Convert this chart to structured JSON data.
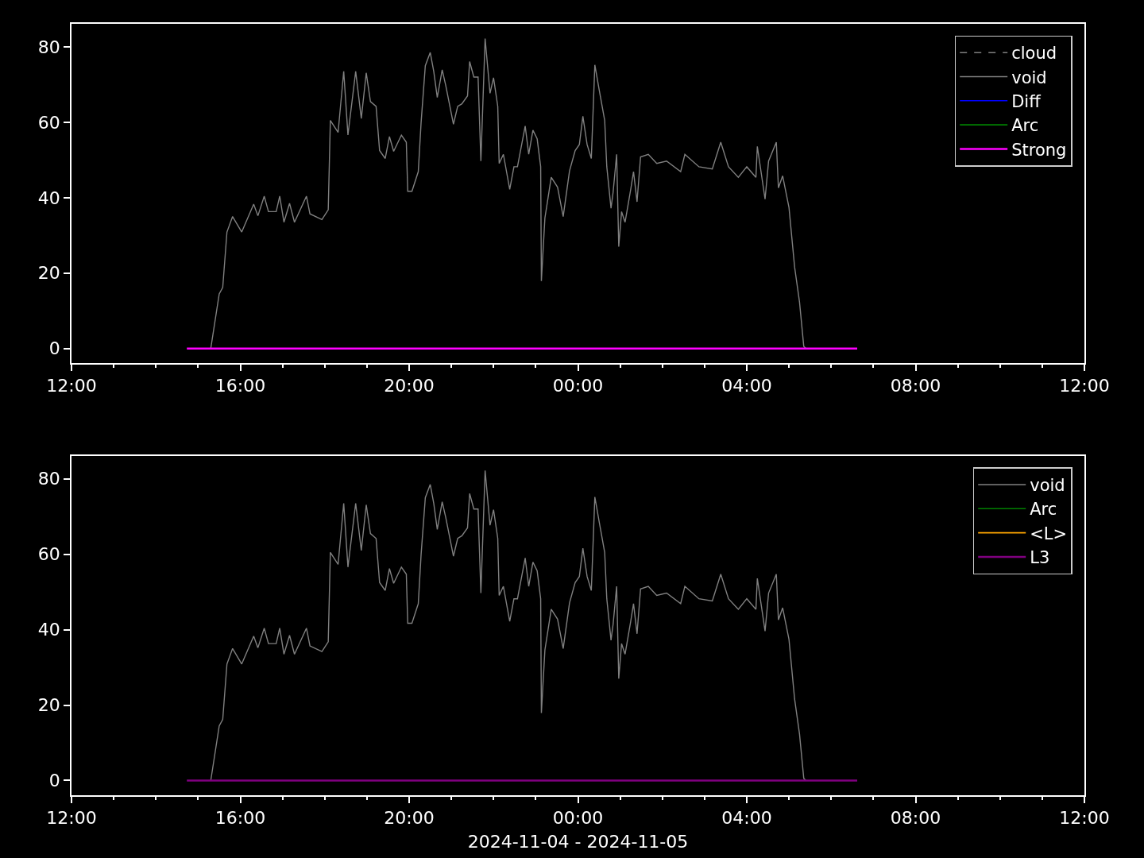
{
  "chart_data": [
    {
      "type": "line",
      "xlim": [
        "2024-11-04T12:00",
        "2024-11-05T12:00"
      ],
      "ylim": [
        -3.9,
        86.1
      ],
      "yticks": [
        0,
        20,
        40,
        60,
        80
      ],
      "xticks": [
        {
          "value": "2024-11-04T12:00",
          "label": "12:00"
        },
        {
          "value": "2024-11-04T13:00",
          "label": null
        },
        {
          "value": "2024-11-04T14:00",
          "label": null
        },
        {
          "value": "2024-11-04T15:00",
          "label": null
        },
        {
          "value": "2024-11-04T16:00",
          "label": "16:00"
        },
        {
          "value": "2024-11-04T17:00",
          "label": null
        },
        {
          "value": "2024-11-04T18:00",
          "label": null
        },
        {
          "value": "2024-11-04T19:00",
          "label": null
        },
        {
          "value": "2024-11-04T20:00",
          "label": "20:00"
        },
        {
          "value": "2024-11-04T21:00",
          "label": null
        },
        {
          "value": "2024-11-04T22:00",
          "label": null
        },
        {
          "value": "2024-11-04T23:00",
          "label": null
        },
        {
          "value": "2024-11-05T00:00",
          "label": "00:00"
        },
        {
          "value": "2024-11-05T01:00",
          "label": null
        },
        {
          "value": "2024-11-05T02:00",
          "label": null
        },
        {
          "value": "2024-11-05T03:00",
          "label": null
        },
        {
          "value": "2024-11-05T04:00",
          "label": "04:00"
        },
        {
          "value": "2024-11-05T05:00",
          "label": null
        },
        {
          "value": "2024-11-05T06:00",
          "label": null
        },
        {
          "value": "2024-11-05T07:00",
          "label": null
        },
        {
          "value": "2024-11-05T08:00",
          "label": "08:00"
        },
        {
          "value": "2024-11-05T09:00",
          "label": null
        },
        {
          "value": "2024-11-05T10:00",
          "label": null
        },
        {
          "value": "2024-11-05T11:00",
          "label": null
        },
        {
          "value": "2024-11-05T12:00",
          "label": "12:00"
        }
      ],
      "grid": false,
      "legend": "top right",
      "marker": "none",
      "series": [
        {
          "name": "cloud",
          "color": "#808080",
          "line_style": "dashed"
        },
        {
          "name": "void",
          "color": "#808080",
          "line_style": "solid",
          "x": [
            "2024-11-04T15:18",
            "2024-11-04T15:30",
            "2024-11-04T15:35",
            "2024-11-04T15:41",
            "2024-11-04T15:49",
            "2024-11-04T16:02",
            "2024-11-04T16:19",
            "2024-11-04T16:25",
            "2024-11-04T16:34",
            "2024-11-04T16:40",
            "2024-11-04T16:51",
            "2024-11-04T16:56",
            "2024-11-04T17:02",
            "2024-11-04T17:10",
            "2024-11-04T17:17",
            "2024-11-04T17:34",
            "2024-11-04T17:39",
            "2024-11-04T17:56",
            "2024-11-04T18:05",
            "2024-11-04T18:08",
            "2024-11-04T18:19",
            "2024-11-04T18:27",
            "2024-11-04T18:33",
            "2024-11-04T18:44",
            "2024-11-04T18:52",
            "2024-11-04T18:59",
            "2024-11-04T19:05",
            "2024-11-04T19:13",
            "2024-11-04T19:18",
            "2024-11-04T19:26",
            "2024-11-04T19:32",
            "2024-11-04T19:38",
            "2024-11-04T19:49",
            "2024-11-04T19:56",
            "2024-11-04T19:58",
            "2024-11-04T20:04",
            "2024-11-04T20:13",
            "2024-11-04T20:17",
            "2024-11-04T20:23",
            "2024-11-04T20:30",
            "2024-11-04T20:35",
            "2024-11-04T20:40",
            "2024-11-04T20:47",
            "2024-11-04T20:52",
            "2024-11-04T21:03",
            "2024-11-04T21:09",
            "2024-11-04T21:15",
            "2024-11-04T21:23",
            "2024-11-04T21:26",
            "2024-11-04T21:32",
            "2024-11-04T21:38",
            "2024-11-04T21:42",
            "2024-11-04T21:48",
            "2024-11-04T21:55",
            "2024-11-04T22:00",
            "2024-11-04T22:06",
            "2024-11-04T22:08",
            "2024-11-04T22:14",
            "2024-11-04T22:23",
            "2024-11-04T22:29",
            "2024-11-04T22:34",
            "2024-11-04T22:45",
            "2024-11-04T22:50",
            "2024-11-04T22:56",
            "2024-11-04T23:02",
            "2024-11-04T23:07",
            "2024-11-04T23:08",
            "2024-11-04T23:13",
            "2024-11-04T23:22",
            "2024-11-04T23:31",
            "2024-11-04T23:39",
            "2024-11-04T23:48",
            "2024-11-04T23:56",
            "2024-11-05T00:02",
            "2024-11-05T00:07",
            "2024-11-05T00:13",
            "2024-11-05T00:19",
            "2024-11-05T00:24",
            "2024-11-05T00:30",
            "2024-11-05T00:38",
            "2024-11-05T00:41",
            "2024-11-05T00:47",
            "2024-11-05T00:50",
            "2024-11-05T00:55",
            "2024-11-05T00:58",
            "2024-11-05T01:02",
            "2024-11-05T01:07",
            "2024-11-05T01:15",
            "2024-11-05T01:19",
            "2024-11-05T01:24",
            "2024-11-05T01:29",
            "2024-11-05T01:40",
            "2024-11-05T01:52",
            "2024-11-05T02:06",
            "2024-11-05T02:26",
            "2024-11-05T02:32",
            "2024-11-05T02:52",
            "2024-11-05T03:11",
            "2024-11-05T03:23",
            "2024-11-05T03:34",
            "2024-11-05T03:48",
            "2024-11-05T04:00",
            "2024-11-05T04:13",
            "2024-11-05T04:15",
            "2024-11-05T04:26",
            "2024-11-05T04:31",
            "2024-11-05T04:42",
            "2024-11-05T04:45",
            "2024-11-05T04:51",
            "2024-11-05T05:00",
            "2024-11-05T05:08",
            "2024-11-05T05:15",
            "2024-11-05T05:21",
            "2024-11-05T05:24"
          ],
          "values": [
            0,
            14.5,
            16.2,
            30.9,
            35.0,
            30.9,
            38.3,
            35.2,
            40.4,
            36.3,
            36.3,
            40.4,
            33.5,
            38.5,
            33.5,
            40.4,
            35.7,
            34.2,
            36.8,
            60.5,
            57.3,
            73.5,
            56.6,
            73.5,
            61.0,
            73.1,
            65.5,
            64.2,
            52.5,
            50.4,
            56.2,
            52.3,
            56.6,
            54.7,
            41.7,
            41.7,
            46.9,
            59.9,
            75.0,
            78.5,
            73.5,
            66.6,
            73.9,
            69.8,
            59.5,
            64.2,
            64.9,
            67.0,
            76.1,
            72.0,
            72.0,
            49.7,
            82.2,
            67.7,
            71.8,
            64.2,
            49.1,
            51.5,
            42.2,
            48.2,
            48.2,
            59.0,
            51.5,
            57.9,
            55.6,
            48.2,
            17.9,
            34.6,
            45.4,
            42.8,
            35.0,
            47.1,
            52.5,
            54.1,
            61.6,
            54.1,
            50.4,
            75.2,
            68.8,
            60.5,
            48.2,
            37.2,
            41.5,
            51.5,
            27.0,
            36.3,
            33.5,
            42.2,
            46.9,
            38.9,
            50.8,
            51.5,
            49.1,
            49.7,
            46.9,
            51.5,
            48.2,
            47.6,
            54.7,
            48.2,
            45.4,
            48.2,
            45.4,
            53.6,
            39.6,
            49.7,
            54.7,
            42.6,
            45.8,
            37.4,
            21.6,
            12.3,
            0.6,
            0
          ]
        },
        {
          "name": "Diff",
          "color": "#0000ff",
          "line_style": "solid"
        },
        {
          "name": "Arc",
          "color": "#008000",
          "line_style": "solid"
        },
        {
          "name": "Strong",
          "color": "#ff00ff",
          "line_style": "solid",
          "x": [
            "2024-11-04T14:44",
            "2024-11-05T06:37"
          ],
          "values": [
            0,
            0
          ]
        }
      ]
    },
    {
      "type": "line",
      "xlabel": "2024-11-04 - 2024-11-05",
      "xlim": [
        "2024-11-04T12:00",
        "2024-11-05T12:00"
      ],
      "ylim": [
        -3.9,
        86.1
      ],
      "yticks": [
        0,
        20,
        40,
        60,
        80
      ],
      "xticks": [
        {
          "value": "2024-11-04T12:00",
          "label": "12:00"
        },
        {
          "value": "2024-11-04T13:00",
          "label": null
        },
        {
          "value": "2024-11-04T14:00",
          "label": null
        },
        {
          "value": "2024-11-04T15:00",
          "label": null
        },
        {
          "value": "2024-11-04T16:00",
          "label": "16:00"
        },
        {
          "value": "2024-11-04T17:00",
          "label": null
        },
        {
          "value": "2024-11-04T18:00",
          "label": null
        },
        {
          "value": "2024-11-04T19:00",
          "label": null
        },
        {
          "value": "2024-11-04T20:00",
          "label": "20:00"
        },
        {
          "value": "2024-11-04T21:00",
          "label": null
        },
        {
          "value": "2024-11-04T22:00",
          "label": null
        },
        {
          "value": "2024-11-04T23:00",
          "label": null
        },
        {
          "value": "2024-11-05T00:00",
          "label": "00:00"
        },
        {
          "value": "2024-11-05T01:00",
          "label": null
        },
        {
          "value": "2024-11-05T02:00",
          "label": null
        },
        {
          "value": "2024-11-05T03:00",
          "label": null
        },
        {
          "value": "2024-11-05T04:00",
          "label": "04:00"
        },
        {
          "value": "2024-11-05T05:00",
          "label": null
        },
        {
          "value": "2024-11-05T06:00",
          "label": null
        },
        {
          "value": "2024-11-05T07:00",
          "label": null
        },
        {
          "value": "2024-11-05T08:00",
          "label": "08:00"
        },
        {
          "value": "2024-11-05T09:00",
          "label": null
        },
        {
          "value": "2024-11-05T10:00",
          "label": null
        },
        {
          "value": "2024-11-05T11:00",
          "label": null
        },
        {
          "value": "2024-11-05T12:00",
          "label": "12:00"
        }
      ],
      "grid": false,
      "legend": "top right",
      "marker": "none",
      "series": [
        {
          "name": "void",
          "color": "#808080",
          "line_style": "solid",
          "x": [
            "2024-11-04T15:18",
            "2024-11-04T15:30",
            "2024-11-04T15:35",
            "2024-11-04T15:41",
            "2024-11-04T15:49",
            "2024-11-04T16:02",
            "2024-11-04T16:19",
            "2024-11-04T16:25",
            "2024-11-04T16:34",
            "2024-11-04T16:40",
            "2024-11-04T16:51",
            "2024-11-04T16:56",
            "2024-11-04T17:02",
            "2024-11-04T17:10",
            "2024-11-04T17:17",
            "2024-11-04T17:34",
            "2024-11-04T17:39",
            "2024-11-04T17:56",
            "2024-11-04T18:05",
            "2024-11-04T18:08",
            "2024-11-04T18:19",
            "2024-11-04T18:27",
            "2024-11-04T18:33",
            "2024-11-04T18:44",
            "2024-11-04T18:52",
            "2024-11-04T18:59",
            "2024-11-04T19:05",
            "2024-11-04T19:13",
            "2024-11-04T19:18",
            "2024-11-04T19:26",
            "2024-11-04T19:32",
            "2024-11-04T19:38",
            "2024-11-04T19:49",
            "2024-11-04T19:56",
            "2024-11-04T19:58",
            "2024-11-04T20:04",
            "2024-11-04T20:13",
            "2024-11-04T20:17",
            "2024-11-04T20:23",
            "2024-11-04T20:30",
            "2024-11-04T20:35",
            "2024-11-04T20:40",
            "2024-11-04T20:47",
            "2024-11-04T20:52",
            "2024-11-04T21:03",
            "2024-11-04T21:09",
            "2024-11-04T21:15",
            "2024-11-04T21:23",
            "2024-11-04T21:26",
            "2024-11-04T21:32",
            "2024-11-04T21:38",
            "2024-11-04T21:42",
            "2024-11-04T21:48",
            "2024-11-04T21:55",
            "2024-11-04T22:00",
            "2024-11-04T22:06",
            "2024-11-04T22:08",
            "2024-11-04T22:14",
            "2024-11-04T22:23",
            "2024-11-04T22:29",
            "2024-11-04T22:34",
            "2024-11-04T22:45",
            "2024-11-04T22:50",
            "2024-11-04T22:56",
            "2024-11-04T23:02",
            "2024-11-04T23:07",
            "2024-11-04T23:08",
            "2024-11-04T23:13",
            "2024-11-04T23:22",
            "2024-11-04T23:31",
            "2024-11-04T23:39",
            "2024-11-04T23:48",
            "2024-11-04T23:56",
            "2024-11-05T00:02",
            "2024-11-05T00:07",
            "2024-11-05T00:13",
            "2024-11-05T00:19",
            "2024-11-05T00:24",
            "2024-11-05T00:30",
            "2024-11-05T00:38",
            "2024-11-05T00:41",
            "2024-11-05T00:47",
            "2024-11-05T00:50",
            "2024-11-05T00:55",
            "2024-11-05T00:58",
            "2024-11-05T01:02",
            "2024-11-05T01:07",
            "2024-11-05T01:15",
            "2024-11-05T01:19",
            "2024-11-05T01:24",
            "2024-11-05T01:29",
            "2024-11-05T01:40",
            "2024-11-05T01:52",
            "2024-11-05T02:06",
            "2024-11-05T02:26",
            "2024-11-05T02:32",
            "2024-11-05T02:52",
            "2024-11-05T03:11",
            "2024-11-05T03:23",
            "2024-11-05T03:34",
            "2024-11-05T03:48",
            "2024-11-05T04:00",
            "2024-11-05T04:13",
            "2024-11-05T04:15",
            "2024-11-05T04:26",
            "2024-11-05T04:31",
            "2024-11-05T04:42",
            "2024-11-05T04:45",
            "2024-11-05T04:51",
            "2024-11-05T05:00",
            "2024-11-05T05:08",
            "2024-11-05T05:15",
            "2024-11-05T05:21",
            "2024-11-05T05:24"
          ],
          "values": [
            0,
            14.5,
            16.2,
            30.9,
            35.0,
            30.9,
            38.3,
            35.2,
            40.4,
            36.3,
            36.3,
            40.4,
            33.5,
            38.5,
            33.5,
            40.4,
            35.7,
            34.2,
            36.8,
            60.5,
            57.3,
            73.5,
            56.6,
            73.5,
            61.0,
            73.1,
            65.5,
            64.2,
            52.5,
            50.4,
            56.2,
            52.3,
            56.6,
            54.7,
            41.7,
            41.7,
            46.9,
            59.9,
            75.0,
            78.5,
            73.5,
            66.6,
            73.9,
            69.8,
            59.5,
            64.2,
            64.9,
            67.0,
            76.1,
            72.0,
            72.0,
            49.7,
            82.2,
            67.7,
            71.8,
            64.2,
            49.1,
            51.5,
            42.2,
            48.2,
            48.2,
            59.0,
            51.5,
            57.9,
            55.6,
            48.2,
            17.9,
            34.6,
            45.4,
            42.8,
            35.0,
            47.1,
            52.5,
            54.1,
            61.6,
            54.1,
            50.4,
            75.2,
            68.8,
            60.5,
            48.2,
            37.2,
            41.5,
            51.5,
            27.0,
            36.3,
            33.5,
            42.2,
            46.9,
            38.9,
            50.8,
            51.5,
            49.1,
            49.7,
            46.9,
            51.5,
            48.2,
            47.6,
            54.7,
            48.2,
            45.4,
            48.2,
            45.4,
            53.6,
            39.6,
            49.7,
            54.7,
            42.6,
            45.8,
            37.4,
            21.6,
            12.3,
            0.6,
            0
          ]
        },
        {
          "name": "Arc",
          "color": "#008000",
          "line_style": "solid"
        },
        {
          "name": "<L>",
          "color": "#ffa500",
          "line_style": "solid"
        },
        {
          "name": "L3",
          "color": "#800080",
          "line_style": "solid",
          "x": [
            "2024-11-04T14:44",
            "2024-11-05T06:37"
          ],
          "values": [
            0,
            0
          ]
        }
      ]
    }
  ]
}
